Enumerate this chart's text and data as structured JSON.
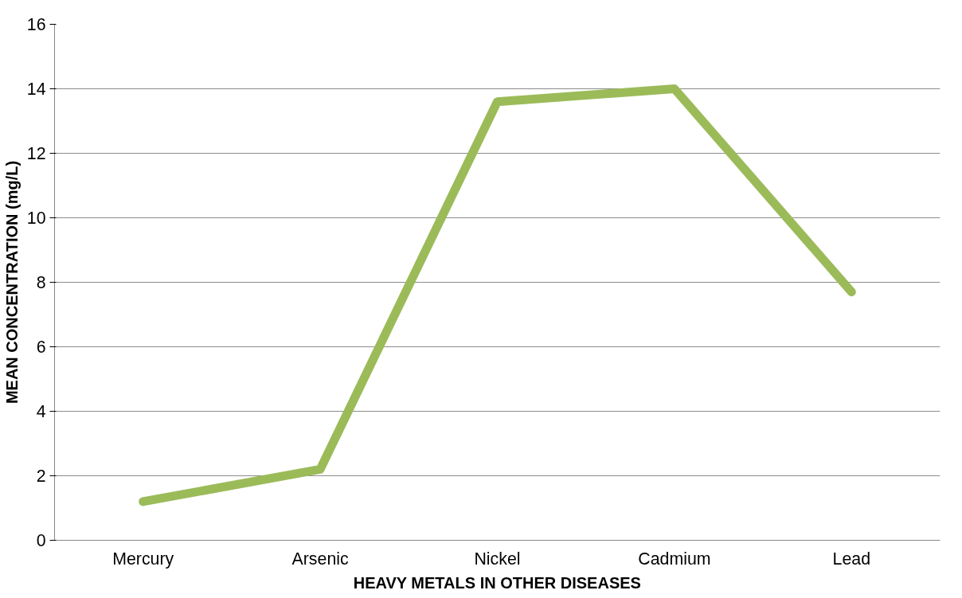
{
  "chart_data": {
    "type": "line",
    "xlabel": "HEAVY METALS IN OTHER DISEASES",
    "ylabel": "MEAN CONCENTRATION (mg/L)",
    "categories": [
      "Mercury",
      "Arsenic",
      "Nickel",
      "Cadmium",
      "Lead"
    ],
    "series": [
      {
        "color": "#9bbb59",
        "values": [
          1.2,
          2.2,
          13.6,
          14.0,
          7.7
        ]
      }
    ],
    "ylim": [
      0,
      16
    ],
    "yticks": [
      0,
      2,
      4,
      6,
      8,
      10,
      12,
      14,
      16
    ],
    "grid": "y",
    "marker": "none",
    "line_style": "solid"
  }
}
